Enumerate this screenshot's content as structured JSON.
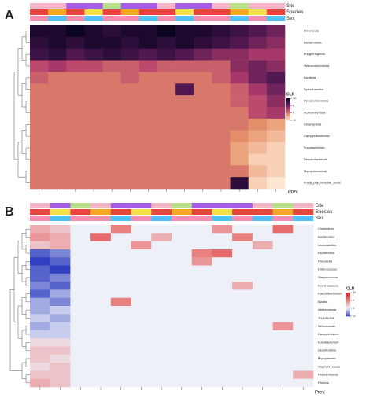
{
  "chart_data": [
    {
      "type": "heatmap",
      "panel": "A",
      "tracks": [
        {
          "name": "Site",
          "colors": [
            "#f2b6c6",
            "#f2b6c6",
            "#a45ee5",
            "#a45ee5",
            "#b8e08a",
            "#a45ee5",
            "#a45ee5",
            "#f2b6c6",
            "#a45ee5",
            "#a45ee5",
            "#f2b6c6",
            "#b8e08a",
            "#f2b6c6",
            "#f2b6c6"
          ]
        },
        {
          "name": "Species",
          "colors": [
            "#e8433c",
            "#f5a623",
            "#e8433c",
            "#f4e04d",
            "#e8433c",
            "#f5a623",
            "#e8433c",
            "#e8433c",
            "#f4e04d",
            "#e8433c",
            "#e8433c",
            "#f5a623",
            "#f4e04d",
            "#e8433c"
          ]
        },
        {
          "name": "Sex",
          "colors": [
            "#f48fb1",
            "#4fc3f7",
            "#f48fb1",
            "#4fc3f7",
            "#f48fb1",
            "#f48fb1",
            "#4fc3f7",
            "#f48fb1",
            "#4fc3f7",
            "#f48fb1",
            "#f48fb1",
            "#4fc3f7",
            "#f48fb1",
            "#4fc3f7"
          ]
        }
      ],
      "rows": [
        "Uroviricota",
        "Bacteroidota",
        "Fungi Kingdom",
        "Verrucomicrobiota",
        "Bacillota",
        "Spirochaetota",
        "Pseudomonadota",
        "Actinomycetota",
        "Chlamydiota",
        "Campylobacterota",
        "Fusobacteriota",
        "Desulfobacterota",
        "Mycoplasmatota",
        "Fungi_phy_incertae_sedis"
      ],
      "values": [
        [
          9,
          9,
          10,
          9,
          8,
          9,
          9,
          10,
          9,
          9,
          8,
          7,
          6,
          5
        ],
        [
          8,
          9,
          8,
          9,
          9,
          8,
          9,
          8,
          9,
          8,
          7,
          6,
          5,
          4
        ],
        [
          7,
          8,
          6,
          7,
          8,
          7,
          6,
          7,
          6,
          5,
          4,
          4,
          3,
          3
        ],
        [
          2,
          3,
          2,
          2,
          1,
          1,
          2,
          1,
          1,
          1,
          1,
          4,
          5,
          4
        ],
        [
          1,
          0,
          0,
          0,
          0,
          1,
          0,
          0,
          0,
          0,
          1,
          3,
          5,
          6
        ],
        [
          0,
          0,
          0,
          0,
          0,
          0,
          0,
          0,
          6,
          0,
          0,
          1,
          3,
          5
        ],
        [
          0,
          0,
          0,
          0,
          0,
          0,
          0,
          0,
          0,
          0,
          0,
          1,
          2,
          4
        ],
        [
          0,
          0,
          0,
          0,
          0,
          0,
          0,
          0,
          0,
          0,
          0,
          0,
          2,
          3
        ],
        [
          0,
          0,
          0,
          0,
          0,
          0,
          0,
          0,
          0,
          0,
          0,
          0,
          -1,
          -2
        ],
        [
          0,
          0,
          0,
          0,
          0,
          0,
          0,
          0,
          0,
          0,
          0,
          -1,
          -2,
          -3
        ],
        [
          0,
          0,
          0,
          0,
          0,
          0,
          0,
          0,
          0,
          0,
          0,
          -2,
          -3,
          -4
        ],
        [
          0,
          0,
          0,
          0,
          0,
          0,
          0,
          0,
          0,
          0,
          0,
          -2,
          -4,
          -4
        ],
        [
          0,
          0,
          0,
          0,
          0,
          0,
          0,
          0,
          0,
          0,
          0,
          0,
          -3,
          -4
        ],
        [
          0,
          0,
          0,
          0,
          0,
          0,
          0,
          0,
          0,
          0,
          0,
          8,
          -4,
          -5
        ]
      ],
      "colorbar": {
        "title": "CLR",
        "lim": [
          -5,
          10
        ],
        "ticks": [
          10,
          5,
          0,
          -5
        ],
        "colors": [
          "#fde6d2",
          "#e8946a",
          "#b53f6e",
          "#4a1550",
          "#0b0520"
        ]
      },
      "footer": "Prev."
    },
    {
      "type": "heatmap",
      "panel": "B",
      "tracks": [
        {
          "name": "Site",
          "colors": [
            "#f2b6c6",
            "#a45ee5",
            "#b8e08a",
            "#f2b6c6",
            "#a45ee5",
            "#a45ee5",
            "#f2b6c6",
            "#b8e08a",
            "#a45ee5",
            "#a45ee5",
            "#a45ee5",
            "#f2b6c6",
            "#b8e08a",
            "#f2b6c6"
          ]
        },
        {
          "name": "Species",
          "colors": [
            "#e8433c",
            "#f4e04d",
            "#e8433c",
            "#f5a623",
            "#e8433c",
            "#f4e04d",
            "#e8433c",
            "#f5a623",
            "#e8433c",
            "#f4e04d",
            "#e8433c",
            "#e8433c",
            "#f5a623",
            "#e8433c"
          ]
        },
        {
          "name": "Sex",
          "colors": [
            "#f48fb1",
            "#4fc3f7",
            "#f48fb1",
            "#f48fb1",
            "#4fc3f7",
            "#f48fb1",
            "#4fc3f7",
            "#f48fb1",
            "#f48fb1",
            "#4fc3f7",
            "#f48fb1",
            "#4fc3f7",
            "#f48fb1",
            "#4fc3f7"
          ]
        }
      ],
      "rows": [
        "Clostridium",
        "Bacteroides",
        "Lactobacillus",
        "Escherichia",
        "Prevotella",
        "Enterococcus",
        "Streptococcus",
        "Ruminococcus",
        "Faecalibacterium",
        "Blautia",
        "Akkermansia",
        "Treponema",
        "Helicobacter",
        "Campylobacter",
        "Fusobacterium",
        "Desulfovibrio",
        "Mycoplasma",
        "Staphylococcus",
        "Pseudomonas",
        "Proteus"
      ],
      "values": [
        [
          3,
          2,
          0,
          0,
          5,
          0,
          0,
          0,
          0,
          4,
          0,
          0,
          6,
          0
        ],
        [
          4,
          3,
          0,
          6,
          0,
          0,
          3,
          0,
          0,
          0,
          5,
          0,
          0,
          0
        ],
        [
          2,
          3,
          0,
          0,
          0,
          4,
          0,
          0,
          0,
          0,
          0,
          3,
          0,
          0
        ],
        [
          -4,
          -3,
          0,
          0,
          0,
          0,
          0,
          0,
          5,
          6,
          0,
          0,
          0,
          0
        ],
        [
          -5,
          -4,
          0,
          0,
          0,
          0,
          0,
          0,
          4,
          0,
          0,
          0,
          0,
          0
        ],
        [
          -4,
          -5,
          0,
          0,
          0,
          0,
          0,
          0,
          0,
          0,
          0,
          0,
          0,
          0
        ],
        [
          -4,
          -3,
          0,
          0,
          0,
          0,
          0,
          0,
          0,
          0,
          0,
          0,
          0,
          0
        ],
        [
          -3,
          -4,
          0,
          0,
          0,
          0,
          0,
          0,
          0,
          0,
          3,
          0,
          0,
          0
        ],
        [
          -4,
          -2,
          0,
          0,
          0,
          0,
          0,
          0,
          0,
          0,
          0,
          0,
          0,
          0
        ],
        [
          -2,
          -3,
          0,
          0,
          5,
          0,
          0,
          0,
          0,
          0,
          0,
          0,
          0,
          0
        ],
        [
          -2,
          -1,
          0,
          0,
          0,
          0,
          0,
          0,
          0,
          0,
          0,
          0,
          0,
          0
        ],
        [
          -1,
          -2,
          0,
          0,
          0,
          0,
          0,
          0,
          0,
          0,
          0,
          0,
          0,
          0
        ],
        [
          -2,
          -1,
          0,
          0,
          0,
          0,
          0,
          0,
          0,
          0,
          0,
          0,
          4,
          0
        ],
        [
          -1,
          -1,
          0,
          0,
          0,
          0,
          0,
          0,
          0,
          0,
          0,
          0,
          0,
          0
        ],
        [
          1,
          1,
          0,
          0,
          0,
          0,
          0,
          0,
          0,
          0,
          0,
          0,
          0,
          0
        ],
        [
          2,
          2,
          0,
          0,
          0,
          0,
          0,
          0,
          0,
          0,
          0,
          0,
          0,
          0
        ],
        [
          2,
          1,
          0,
          0,
          0,
          0,
          0,
          0,
          0,
          0,
          0,
          0,
          0,
          0
        ],
        [
          1,
          2,
          0,
          0,
          0,
          0,
          0,
          0,
          0,
          0,
          0,
          0,
          0,
          0
        ],
        [
          2,
          2,
          0,
          0,
          0,
          0,
          0,
          0,
          0,
          0,
          0,
          0,
          0,
          3
        ],
        [
          3,
          2,
          0,
          0,
          0,
          0,
          0,
          0,
          0,
          0,
          0,
          0,
          0,
          0
        ]
      ],
      "colorbar": {
        "title": "CLR",
        "lim": [
          -5,
          10
        ],
        "ticks": [
          10,
          5,
          0,
          -5
        ],
        "colors": [
          "#3040c0",
          "#eef0f8",
          "#e98080",
          "#d7191c"
        ]
      },
      "footer": "Prev."
    }
  ]
}
